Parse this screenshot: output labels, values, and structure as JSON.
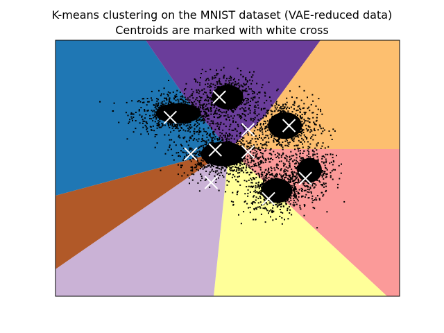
{
  "chart_data": {
    "type": "scatter",
    "title": "K-means clustering on the MNIST dataset (VAE-reduced data)",
    "subtitle": "Centroids are marked with white cross",
    "xlabel": "",
    "ylabel": "",
    "ticks": "none",
    "grid": false,
    "legend": "none",
    "xlim": [
      -4.6,
      3.8
    ],
    "ylim": [
      -3.6,
      2.7
    ],
    "background": "Voronoi decision regions of 10 clusters",
    "region_colors": [
      "#1f77b4",
      "#6a3d9a",
      "#fdbf6f",
      "#fb9a99",
      "#ffff99",
      "#cab2d6",
      "#b15928"
    ],
    "point_color": "#000000",
    "centroid_color": "#ffffff",
    "centroid_marker": "x",
    "centroids": [
      {
        "x": -1.8,
        "y": 0.8
      },
      {
        "x": -0.6,
        "y": 1.3
      },
      {
        "x": 0.1,
        "y": 0.5
      },
      {
        "x": 1.1,
        "y": 0.6
      },
      {
        "x": -1.3,
        "y": -0.1
      },
      {
        "x": -0.7,
        "y": 0.0
      },
      {
        "x": 0.1,
        "y": -0.05
      },
      {
        "x": 1.5,
        "y": -0.7
      },
      {
        "x": -0.8,
        "y": -0.8
      },
      {
        "x": 0.6,
        "y": -1.2
      }
    ],
    "point_clouds": [
      {
        "cx": -1.6,
        "cy": 0.9,
        "sx": 1.0,
        "sy": 0.45,
        "n": 700
      },
      {
        "cx": -0.4,
        "cy": 1.3,
        "sx": 0.7,
        "sy": 0.55,
        "n": 500
      },
      {
        "cx": 1.0,
        "cy": 0.6,
        "sx": 0.75,
        "sy": 0.6,
        "n": 600
      },
      {
        "cx": -0.5,
        "cy": -0.1,
        "sx": 1.0,
        "sy": 0.55,
        "n": 900
      },
      {
        "cx": 0.8,
        "cy": -1.0,
        "sx": 0.7,
        "sy": 0.55,
        "n": 650
      },
      {
        "cx": 1.6,
        "cy": -0.5,
        "sx": 0.55,
        "sy": 0.55,
        "n": 350
      }
    ]
  }
}
